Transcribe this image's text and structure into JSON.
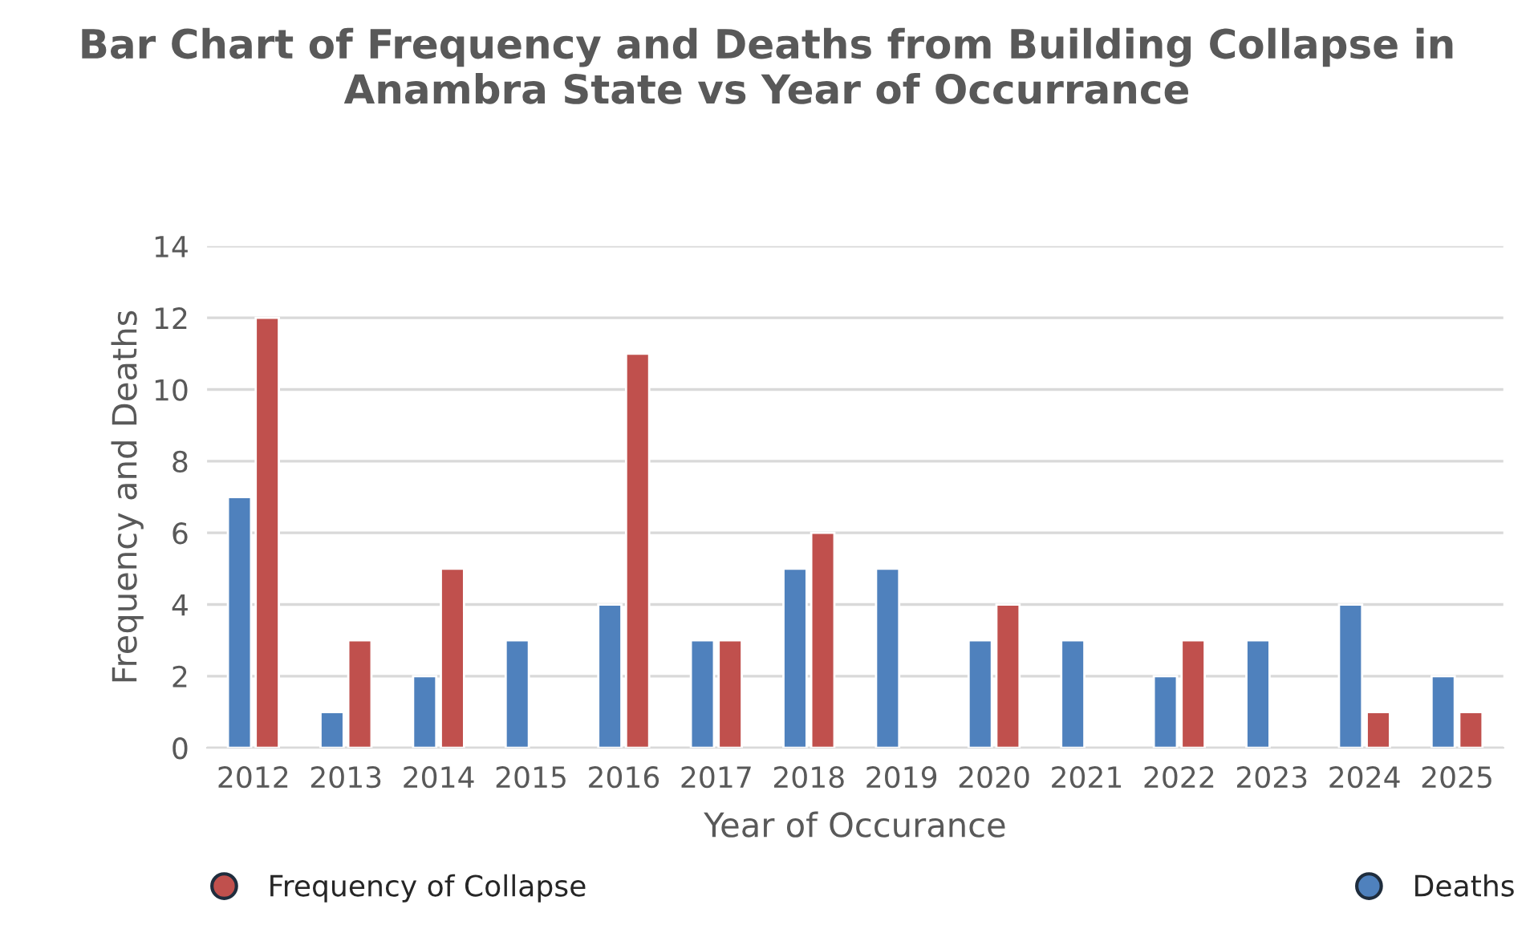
{
  "chart_data": {
    "type": "bar",
    "title": "Bar Chart of Frequency and Deaths from Building Collapse in Anambra State vs Year of Occurrance",
    "xlabel": "Year of Occurance",
    "ylabel": "Frequency and Deaths",
    "categories": [
      "2012",
      "2013",
      "2014",
      "2015",
      "2016",
      "2017",
      "2018",
      "2019",
      "2020",
      "2021",
      "2022",
      "2023",
      "2024",
      "2025"
    ],
    "series": [
      {
        "name": "Deaths",
        "color": "#4f81bd",
        "values": [
          7,
          1,
          2,
          3,
          4,
          3,
          5,
          5,
          3,
          3,
          2,
          3,
          4,
          2
        ]
      },
      {
        "name": "Frequency of Collapse",
        "color": "#c0504d",
        "values": [
          12,
          3,
          5,
          null,
          11,
          3,
          6,
          null,
          4,
          null,
          3,
          null,
          1,
          1
        ]
      }
    ],
    "ylim": [
      0,
      14
    ],
    "yticks": [
      0,
      2,
      4,
      6,
      8,
      10,
      12,
      14
    ],
    "grid": "y",
    "legend": "bottom"
  }
}
